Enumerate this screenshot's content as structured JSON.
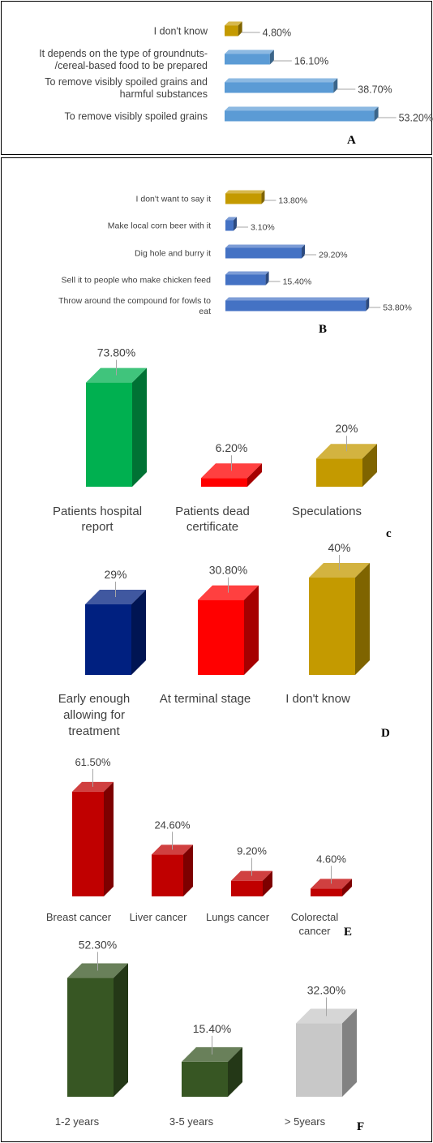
{
  "chart_data": [
    {
      "panel": "A",
      "type": "bar",
      "orientation": "horizontal",
      "categories": [
        "I don't know",
        "It depends on the type of groundnuts-/cereal-based food to be prepared",
        "To remove visibly spoiled grains and harmful substances",
        "To remove visibly spoiled grains"
      ],
      "values": [
        4.8,
        16.1,
        38.7,
        53.2
      ],
      "labels": [
        "4.80%",
        "16.10%",
        "38.70%",
        "53.20%"
      ],
      "colors": [
        "#c49a00",
        "#5b9bd5",
        "#5b9bd5",
        "#5b9bd5"
      ]
    },
    {
      "panel": "B",
      "type": "bar",
      "orientation": "horizontal",
      "categories": [
        "I don't want to say it",
        "Make local corn beer with it",
        "Dig hole and burry it",
        "Sell it to people who make chicken feed",
        "Throw around the compound for fowls to eat"
      ],
      "values": [
        13.8,
        3.1,
        29.2,
        15.4,
        53.8
      ],
      "labels": [
        "13.80%",
        "3.10%",
        "29.20%",
        "15.40%",
        "53.80%"
      ],
      "colors": [
        "#c49a00",
        "#4472c4",
        "#4472c4",
        "#4472c4",
        "#4472c4"
      ]
    },
    {
      "panel": "c",
      "type": "bar",
      "categories": [
        "Patients hospital report",
        "Patients dead certificate",
        "Speculations"
      ],
      "values": [
        73.8,
        6.2,
        20
      ],
      "labels": [
        "73.80%",
        "6.20%",
        "20%"
      ],
      "colors": [
        "#00b050",
        "#ff0000",
        "#c49a00"
      ]
    },
    {
      "panel": "D",
      "type": "bar",
      "categories": [
        "Early enough allowing for treatment",
        "At terminal stage",
        "I don't know"
      ],
      "values": [
        29,
        30.8,
        40
      ],
      "labels": [
        "29%",
        "30.80%",
        "40%"
      ],
      "colors": [
        "#002080",
        "#ff0000",
        "#c49a00"
      ]
    },
    {
      "panel": "E",
      "type": "bar",
      "categories": [
        "Breast cancer",
        "Liver cancer",
        "Lungs cancer",
        "Colorectal cancer"
      ],
      "values": [
        61.5,
        24.6,
        9.2,
        4.6
      ],
      "labels": [
        "61.50%",
        "24.60%",
        "9.20%",
        "4.60%"
      ],
      "colors": [
        "#c00000",
        "#c00000",
        "#c00000",
        "#c00000"
      ]
    },
    {
      "panel": "F",
      "type": "bar",
      "categories": [
        "1-2 years",
        "3-5 years",
        "> 5years"
      ],
      "values": [
        52.3,
        15.4,
        32.3
      ],
      "labels": [
        "52.30%",
        "15.40%",
        "32.30%"
      ],
      "colors": [
        "#375623",
        "#375623",
        "#c8c8c8"
      ]
    }
  ]
}
